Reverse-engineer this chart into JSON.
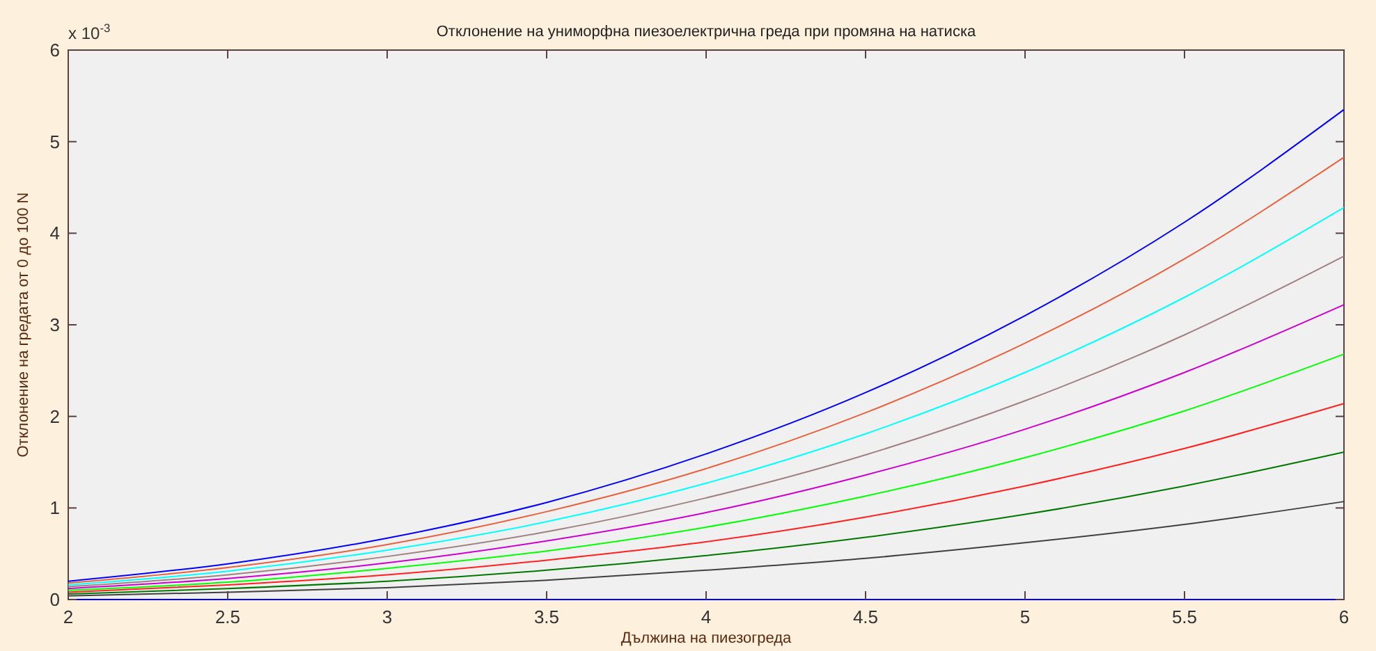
{
  "chart_data": {
    "type": "line",
    "title": "Отклонение на униморфна пиезоелектрична греда при промяна на натиска",
    "xlabel": "Дължина на пиезогреда",
    "ylabel": "Отклонение на гредата от 0 до 100 N",
    "annotations": [
      "x 10$^{-3}$"
    ],
    "x": [
      2,
      2.5,
      3,
      3.5,
      4,
      4.5,
      5,
      5.5,
      6
    ],
    "xlim": [
      2,
      6
    ],
    "xticks": [
      2,
      2.5,
      3,
      3.5,
      4,
      4.5,
      5,
      5.5,
      6
    ],
    "ylim": [
      0,
      6
    ],
    "yticks": [
      0,
      1,
      2,
      3,
      4,
      5,
      6
    ],
    "grid": false,
    "line_style": "solid",
    "marker": "none",
    "series": [
      {
        "color": "#0000ff",
        "values": [
          0,
          0,
          0,
          0,
          0,
          0,
          0,
          0,
          0
        ]
      },
      {
        "color": "#0000ff",
        "values": [
          0.2,
          0.39,
          0.67,
          1.06,
          1.59,
          2.26,
          3.1,
          4.12,
          5.35
        ]
      },
      {
        "color": "#e8603c",
        "values": [
          0.18,
          0.35,
          0.6,
          0.96,
          1.43,
          2.04,
          2.8,
          3.72,
          4.83
        ]
      },
      {
        "color": "#00ffff",
        "values": [
          0.16,
          0.31,
          0.54,
          0.85,
          1.27,
          1.81,
          2.48,
          3.3,
          4.28
        ]
      },
      {
        "color": "#a08080",
        "values": [
          0.14,
          0.27,
          0.47,
          0.74,
          1.11,
          1.58,
          2.17,
          2.89,
          3.75
        ]
      },
      {
        "color": "#cc00cc",
        "values": [
          0.12,
          0.23,
          0.4,
          0.64,
          0.95,
          1.36,
          1.86,
          2.48,
          3.22
        ]
      },
      {
        "color": "#00ff00",
        "values": [
          0.1,
          0.19,
          0.34,
          0.53,
          0.79,
          1.13,
          1.55,
          2.06,
          2.68
        ]
      },
      {
        "color": "#ff2020",
        "values": [
          0.08,
          0.16,
          0.27,
          0.43,
          0.63,
          0.9,
          1.24,
          1.65,
          2.14
        ]
      },
      {
        "color": "#007700",
        "values": [
          0.06,
          0.12,
          0.2,
          0.32,
          0.48,
          0.68,
          0.93,
          1.24,
          1.61
        ]
      },
      {
        "color": "#404040",
        "values": [
          0.04,
          0.08,
          0.13,
          0.21,
          0.32,
          0.45,
          0.62,
          0.82,
          1.07
        ]
      }
    ]
  }
}
